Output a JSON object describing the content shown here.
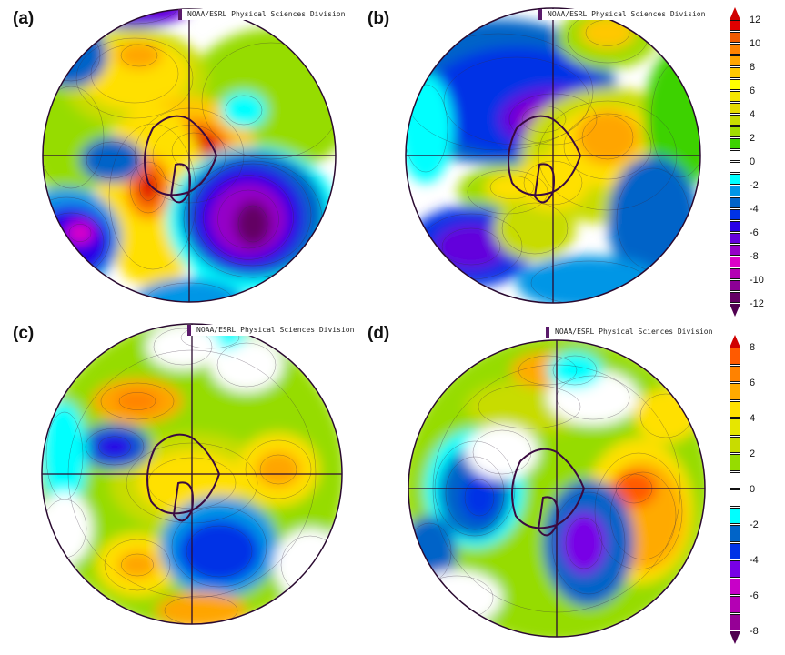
{
  "panels": [
    {
      "label": "(a)",
      "credit": "NOAA/ESRL Physical Sciences Division"
    },
    {
      "label": "(b)",
      "credit": "NOAA/ESRL Physical Sciences Division"
    },
    {
      "label": "(c)",
      "credit": "NOAA/ESRL Physical Sciences Division"
    },
    {
      "label": "(d)",
      "credit": "NOAA/ESRL Physical Sciences Division"
    }
  ],
  "colorbars": [
    {
      "applies_to": [
        "(a)",
        "(b)"
      ],
      "tick_labels": [
        "12",
        "10",
        "8",
        "6",
        "4",
        "2",
        "0",
        "-2",
        "-4",
        "-6",
        "-8",
        "-10",
        "-12"
      ],
      "levels_top_to_bottom": [
        12,
        11,
        10,
        9,
        8,
        7,
        6,
        5,
        4,
        3,
        2,
        1,
        0,
        -1,
        -2,
        -3,
        -4,
        -5,
        -6,
        -7,
        -8,
        -9,
        -10,
        -11,
        -12
      ],
      "colors_top_to_bottom": [
        "#e00000",
        "#f05a00",
        "#ff8200",
        "#ffa500",
        "#ffc800",
        "#ffff00",
        "#f5e600",
        "#e6dc00",
        "#c8dc00",
        "#a0dc00",
        "#3cd200",
        "#ffffff",
        "#ffffff",
        "#00ffff",
        "#0096e6",
        "#0064c8",
        "#0032e6",
        "#2800e6",
        "#6400dc",
        "#9600c8",
        "#dc00c8",
        "#b400b4",
        "#8c0096",
        "#640064"
      ],
      "arrow_top_color": "#d00000",
      "arrow_bottom_color": "#500050"
    },
    {
      "applies_to": [
        "(c)",
        "(d)"
      ],
      "tick_labels": [
        "8",
        "6",
        "4",
        "2",
        "0",
        "-2",
        "-4",
        "-6",
        "-8"
      ],
      "levels_top_to_bottom": [
        8,
        7,
        6,
        5,
        4,
        3,
        2,
        1,
        0,
        -1,
        -2,
        -3,
        -4,
        -5,
        -6,
        -7,
        -8
      ],
      "colors_top_to_bottom": [
        "#ff5a00",
        "#ff8200",
        "#ffaa00",
        "#ffe000",
        "#e6e600",
        "#c8dc00",
        "#96dc00",
        "#ffffff",
        "#ffffff",
        "#00ffff",
        "#0064c8",
        "#0032e6",
        "#7800e6",
        "#c800c8",
        "#b400b4",
        "#960096"
      ],
      "arrow_top_color": "#d00000",
      "arrow_bottom_color": "#500050"
    }
  ]
}
